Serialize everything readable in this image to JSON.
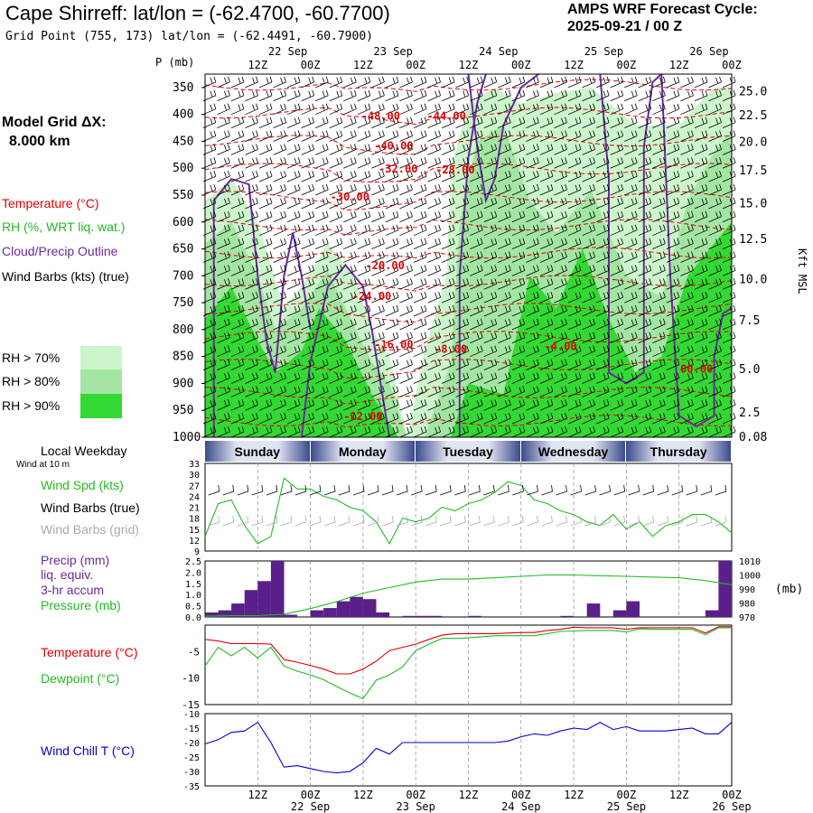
{
  "header": {
    "title": "Cape Shirreff:  lat/lon = (-62.4700, -60.7700)",
    "subtitle": "Grid Point (755, 173) lat/lon = (-62.4491, -60.7900)",
    "forecast_line1": "AMPS WRF Forecast Cycle:",
    "forecast_line2": "2025-09-21 / 00  Z"
  },
  "left_panel": {
    "model_grid_label": "Model Grid ΔX:",
    "model_grid_value": "8.000 km",
    "temperature_label": "Temperature (°C)",
    "rh_label": "RH (%, WRT liq. wat.)",
    "cloud_label": "Cloud/Precip Outline",
    "wind_label": "Wind Barbs (kts) (true)",
    "rh70": "RH > 70%",
    "rh80": "RH > 80%",
    "rh90": "RH > 90%",
    "rh_colors": [
      "#ccf5cc",
      "#a3e6a3",
      "#33d933"
    ],
    "local_weekday": "Local Weekday",
    "wind_at_10m": "Wind at 10 m",
    "wind_spd": "Wind Spd (kts)",
    "wind_barbs_true": "Wind Barbs (true)",
    "wind_barbs_grid": "Wind Barbs (grid)",
    "precip_label": "Precip (mm)",
    "liq_equiv": "liq. equiv.",
    "hr3_accum": "3-hr accum",
    "pressure_label": "Pressure (mb)",
    "temp2_label": "Temperature (°C)",
    "dewpoint_label": "Dewpoint (°C)",
    "windchill_label": "Wind Chill T (°C)"
  },
  "colors": {
    "temperature": "#e00000",
    "rh": "#22bb22",
    "cloud": "#6a2a9a",
    "grey_barbs": "#aaaaaa",
    "windchill": "#0000cc",
    "precip_bar": "#5a1f8a"
  },
  "axis_top": {
    "p_label": "P (mb)",
    "hour_ticks": [
      "12Z",
      "00Z",
      "12Z",
      "00Z",
      "12Z",
      "00Z",
      "12Z",
      "00Z",
      "12Z",
      "00Z"
    ],
    "date_labels": [
      "22 Sep",
      "23 Sep",
      "24 Sep",
      "25 Sep",
      "26 Sep"
    ]
  },
  "days": [
    "Sunday",
    "Monday",
    "Tuesday",
    "Wednesday",
    "Thursday"
  ],
  "chart_data": [
    {
      "type": "heatmap",
      "title": "Vertical cross-section (time-height)",
      "y_left_label": "P (mb)",
      "y_left_ticks": [
        "350",
        "400",
        "450",
        "500",
        "550",
        "600",
        "650",
        "700",
        "750",
        "800",
        "850",
        "900",
        "950",
        "1000"
      ],
      "y_right_label": "Kft MSL",
      "y_right_ticks": [
        "25.0",
        "22.5",
        "20.0",
        "17.5",
        "15.0",
        "12.5",
        "10.0",
        "7.5",
        "5.0",
        "2.5",
        "0.08"
      ],
      "x_range_hours": [
        0,
        120
      ],
      "temperature_contour_labels": [
        {
          "t": 40,
          "p": 410,
          "label": "-48.00"
        },
        {
          "t": 55,
          "p": 410,
          "label": "-44.00"
        },
        {
          "t": 43,
          "p": 465,
          "label": "-40.00"
        },
        {
          "t": 44,
          "p": 508,
          "label": "-32.00"
        },
        {
          "t": 57,
          "p": 510,
          "label": "-28.00"
        },
        {
          "t": 33,
          "p": 560,
          "label": "-30.00"
        },
        {
          "t": 41,
          "p": 688,
          "label": "-20.00"
        },
        {
          "t": 38,
          "p": 745,
          "label": "-24.00"
        },
        {
          "t": 43,
          "p": 835,
          "label": "-16.00"
        },
        {
          "t": 56,
          "p": 843,
          "label": "-8.00"
        },
        {
          "t": 81,
          "p": 838,
          "label": "-4.00"
        },
        {
          "t": 112,
          "p": 880,
          "label": "00.00"
        },
        {
          "t": 36,
          "p": 968,
          "label": "-12.00"
        }
      ]
    },
    {
      "type": "line",
      "title": "Wind Spd (kts)",
      "ylim": [
        9,
        33
      ],
      "y_ticks": [
        "33",
        "30",
        "27",
        "24",
        "21",
        "18",
        "15",
        "12",
        "9"
      ],
      "x_hours": [
        0,
        3,
        6,
        9,
        12,
        15,
        18,
        21,
        24,
        27,
        30,
        33,
        36,
        39,
        42,
        45,
        48,
        51,
        54,
        57,
        60,
        63,
        66,
        69,
        72,
        75,
        78,
        81,
        84,
        87,
        90,
        93,
        96,
        99,
        102,
        105,
        108,
        111,
        114,
        117,
        120
      ],
      "values": [
        13,
        22,
        23,
        16,
        11,
        13,
        29,
        26,
        26,
        24,
        23,
        21,
        20,
        17,
        11,
        18,
        17,
        18,
        21,
        20,
        22,
        23,
        25,
        28,
        27,
        23,
        22,
        20,
        19,
        17,
        16,
        19,
        15,
        17,
        13,
        16,
        17,
        19,
        19,
        17,
        14
      ]
    },
    {
      "type": "bar",
      "title": "Precip (mm) 3-hr accum / Pressure (mb)",
      "ylim": [
        0,
        2.5
      ],
      "y_ticks": [
        "2.5",
        "2.0",
        "1.5",
        "1.0",
        "0.5",
        "0.0"
      ],
      "y2_ticks": [
        "1010",
        "1000",
        "990",
        "980",
        "970"
      ],
      "y2lim": [
        970,
        1010
      ],
      "y2_label": "(mb)",
      "x_hours": [
        1.5,
        4.5,
        7.5,
        10.5,
        13.5,
        16.5,
        19.5,
        22.5,
        25.5,
        28.5,
        31.5,
        34.5,
        37.5,
        40.5,
        43.5,
        46.5,
        49.5,
        52.5,
        55.5,
        58.5,
        61.5,
        64.5,
        67.5,
        70.5,
        73.5,
        76.5,
        79.5,
        82.5,
        85.5,
        88.5,
        91.5,
        94.5,
        97.5,
        100.5,
        103.5,
        106.5,
        109.5,
        112.5,
        115.5,
        118.5
      ],
      "values": [
        0.2,
        0.3,
        0.6,
        1.2,
        1.6,
        2.5,
        0.1,
        0.0,
        0.3,
        0.4,
        0.7,
        0.9,
        0.8,
        0.2,
        0.0,
        0.05,
        0.05,
        0.05,
        0.0,
        0.0,
        0.05,
        0.0,
        0.0,
        0.0,
        0.0,
        0.0,
        0.0,
        0.05,
        0.0,
        0.6,
        0.0,
        0.3,
        0.7,
        0.0,
        0.0,
        0.0,
        0.0,
        0.0,
        0.3,
        2.5
      ],
      "pressure_x_hours": [
        0,
        6,
        12,
        18,
        24,
        30,
        36,
        42,
        48,
        54,
        60,
        66,
        72,
        78,
        84,
        90,
        96,
        102,
        108,
        114,
        120
      ],
      "pressure_values": [
        970.5,
        971,
        971,
        972,
        976,
        981,
        987,
        991,
        995,
        997,
        997,
        998,
        999,
        1000,
        1000,
        999.5,
        999,
        998.5,
        998,
        996,
        993
      ]
    },
    {
      "type": "line",
      "title": "Temperature / Dewpoint (°C)",
      "ylim": [
        -15,
        0
      ],
      "y_ticks": [
        "-5",
        "-10",
        "-15"
      ],
      "series": [
        {
          "name": "Temperature",
          "x_hours": [
            0,
            3,
            6,
            9,
            12,
            15,
            18,
            21,
            24,
            27,
            30,
            33,
            36,
            39,
            42,
            45,
            48,
            51,
            54,
            57,
            60,
            63,
            66,
            69,
            72,
            75,
            78,
            81,
            84,
            87,
            90,
            93,
            96,
            99,
            102,
            105,
            108,
            111,
            114,
            117,
            120
          ],
          "values": [
            -2.7,
            -3.0,
            -3.5,
            -3.5,
            -3.5,
            -3.6,
            -6.5,
            -7.0,
            -7.6,
            -8.3,
            -9.2,
            -9.2,
            -8.3,
            -6.8,
            -4.8,
            -4.2,
            -3.6,
            -2.7,
            -1.9,
            -1.6,
            -1.6,
            -1.6,
            -1.6,
            -1.5,
            -1.4,
            -1.4,
            -1.0,
            -0.8,
            -0.4,
            -0.5,
            -0.5,
            -0.5,
            -0.8,
            -0.5,
            -0.5,
            -0.5,
            -0.5,
            -0.5,
            -1.5,
            -0.3,
            -0.3
          ]
        },
        {
          "name": "Dewpoint",
          "x_hours": [
            0,
            3,
            6,
            9,
            12,
            15,
            18,
            21,
            24,
            27,
            30,
            33,
            36,
            39,
            42,
            45,
            48,
            51,
            54,
            57,
            60,
            63,
            66,
            69,
            72,
            75,
            78,
            81,
            84,
            87,
            90,
            93,
            96,
            99,
            102,
            105,
            108,
            111,
            114,
            117,
            120
          ],
          "values": [
            -7.7,
            -4.2,
            -5.8,
            -4.2,
            -6.2,
            -4.2,
            -7.7,
            -8.7,
            -9.4,
            -10.3,
            -11.6,
            -12.8,
            -13.9,
            -10.4,
            -9.4,
            -7.9,
            -4.8,
            -3.6,
            -2.5,
            -2.5,
            -2.4,
            -2.2,
            -2.0,
            -2.0,
            -2.0,
            -2.0,
            -1.6,
            -1.2,
            -1.1,
            -1.0,
            -1.0,
            -1.0,
            -1.3,
            -0.7,
            -0.8,
            -0.8,
            -0.8,
            -0.8,
            -1.8,
            -0.5,
            -0.5
          ]
        }
      ]
    },
    {
      "type": "line",
      "title": "Wind Chill T (°C)",
      "ylim": [
        -35,
        -10
      ],
      "y_ticks": [
        "-10",
        "-15",
        "-20",
        "-25",
        "-30",
        "-35"
      ],
      "x_hours": [
        0,
        3,
        6,
        9,
        12,
        15,
        18,
        21,
        24,
        27,
        30,
        33,
        36,
        39,
        42,
        45,
        48,
        51,
        54,
        57,
        60,
        63,
        66,
        69,
        72,
        75,
        78,
        81,
        84,
        87,
        90,
        93,
        96,
        99,
        102,
        105,
        108,
        111,
        114,
        117,
        120
      ],
      "values": [
        -20.5,
        -19,
        -16.5,
        -16,
        -13,
        -20,
        -28.5,
        -28,
        -29,
        -30,
        -30.5,
        -30,
        -27,
        -22,
        -24,
        -20,
        -20,
        -20,
        -20,
        -20,
        -20,
        -20,
        -20,
        -19.5,
        -18,
        -17,
        -17.5,
        -16,
        -15,
        -15.5,
        -13,
        -15.5,
        -14.5,
        -16,
        -16,
        -16,
        -15.5,
        -15,
        -17,
        -17,
        -13
      ]
    }
  ],
  "axis_bottom": {
    "hour_ticks": [
      "12Z",
      "00Z",
      "12Z",
      "00Z",
      "12Z",
      "00Z",
      "12Z",
      "00Z",
      "12Z",
      "00Z"
    ],
    "date_labels": [
      "22 Sep",
      "23 Sep",
      "24 Sep",
      "25 Sep",
      "26 Sep"
    ]
  }
}
